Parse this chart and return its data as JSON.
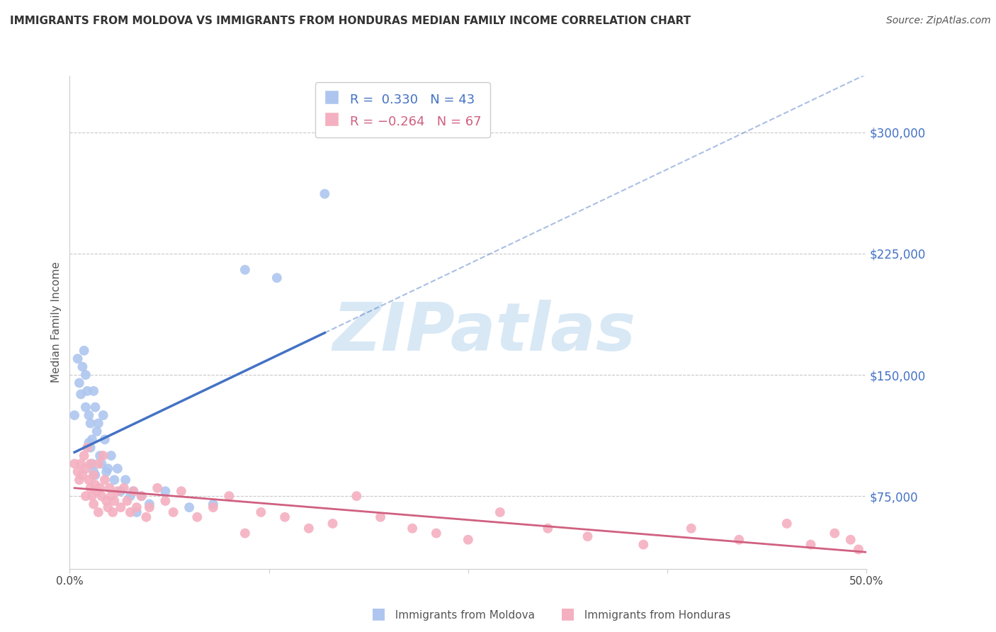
{
  "title": "IMMIGRANTS FROM MOLDOVA VS IMMIGRANTS FROM HONDURAS MEDIAN FAMILY INCOME CORRELATION CHART",
  "source": "Source: ZipAtlas.com",
  "ylabel": "Median Family Income",
  "xlim": [
    0.0,
    0.5
  ],
  "ylim": [
    30000,
    335000
  ],
  "yticks": [
    75000,
    150000,
    225000,
    300000
  ],
  "ytick_labels": [
    "$75,000",
    "$150,000",
    "$225,000",
    "$300,000"
  ],
  "xticks": [
    0.0,
    0.125,
    0.25,
    0.375,
    0.5
  ],
  "xtick_labels": [
    "0.0%",
    "",
    "",
    "",
    "50.0%"
  ],
  "background_color": "#ffffff",
  "grid_color": "#bbbbbb",
  "moldova_color": "#aec6ef",
  "moldova_line_color": "#4472c4",
  "moldova_R": 0.33,
  "moldova_N": 43,
  "honduras_color": "#f4b0c0",
  "honduras_line_color": "#d06080",
  "honduras_R": -0.264,
  "honduras_N": 67,
  "legend_R_color": "#4472c4",
  "legend_R2_color": "#d06080",
  "moldova_scatter_x": [
    0.003,
    0.005,
    0.006,
    0.007,
    0.008,
    0.009,
    0.01,
    0.01,
    0.011,
    0.012,
    0.012,
    0.013,
    0.013,
    0.014,
    0.014,
    0.015,
    0.015,
    0.016,
    0.016,
    0.017,
    0.018,
    0.019,
    0.02,
    0.021,
    0.022,
    0.023,
    0.024,
    0.026,
    0.028,
    0.03,
    0.032,
    0.035,
    0.038,
    0.04,
    0.042,
    0.045,
    0.05,
    0.06,
    0.075,
    0.09,
    0.11,
    0.13,
    0.16
  ],
  "moldova_scatter_y": [
    125000,
    160000,
    145000,
    138000,
    155000,
    165000,
    150000,
    130000,
    140000,
    125000,
    108000,
    120000,
    105000,
    110000,
    95000,
    140000,
    90000,
    130000,
    88000,
    115000,
    120000,
    100000,
    95000,
    125000,
    110000,
    90000,
    92000,
    100000,
    85000,
    92000,
    78000,
    85000,
    75000,
    78000,
    65000,
    75000,
    70000,
    78000,
    68000,
    70000,
    215000,
    210000,
    262000
  ],
  "honduras_scatter_x": [
    0.003,
    0.005,
    0.006,
    0.007,
    0.008,
    0.009,
    0.01,
    0.01,
    0.011,
    0.012,
    0.013,
    0.013,
    0.014,
    0.015,
    0.015,
    0.016,
    0.017,
    0.018,
    0.018,
    0.019,
    0.02,
    0.021,
    0.022,
    0.023,
    0.024,
    0.025,
    0.026,
    0.027,
    0.028,
    0.03,
    0.032,
    0.034,
    0.036,
    0.038,
    0.04,
    0.042,
    0.045,
    0.048,
    0.05,
    0.055,
    0.06,
    0.065,
    0.07,
    0.08,
    0.09,
    0.1,
    0.11,
    0.12,
    0.135,
    0.15,
    0.165,
    0.18,
    0.195,
    0.215,
    0.23,
    0.25,
    0.27,
    0.3,
    0.325,
    0.36,
    0.39,
    0.42,
    0.45,
    0.465,
    0.48,
    0.49,
    0.495
  ],
  "honduras_scatter_y": [
    95000,
    90000,
    85000,
    95000,
    88000,
    100000,
    92000,
    75000,
    105000,
    85000,
    80000,
    95000,
    75000,
    88000,
    70000,
    82000,
    78000,
    95000,
    65000,
    80000,
    75000,
    100000,
    85000,
    72000,
    68000,
    80000,
    75000,
    65000,
    72000,
    78000,
    68000,
    80000,
    72000,
    65000,
    78000,
    68000,
    75000,
    62000,
    68000,
    80000,
    72000,
    65000,
    78000,
    62000,
    68000,
    75000,
    52000,
    65000,
    62000,
    55000,
    58000,
    75000,
    62000,
    55000,
    52000,
    48000,
    65000,
    55000,
    50000,
    45000,
    55000,
    48000,
    58000,
    45000,
    52000,
    48000,
    42000
  ],
  "moldova_line_x0": 0.003,
  "moldova_line_x_solid_end": 0.16,
  "moldova_line_x1": 0.5,
  "honduras_line_x0": 0.003,
  "honduras_line_x1": 0.5
}
